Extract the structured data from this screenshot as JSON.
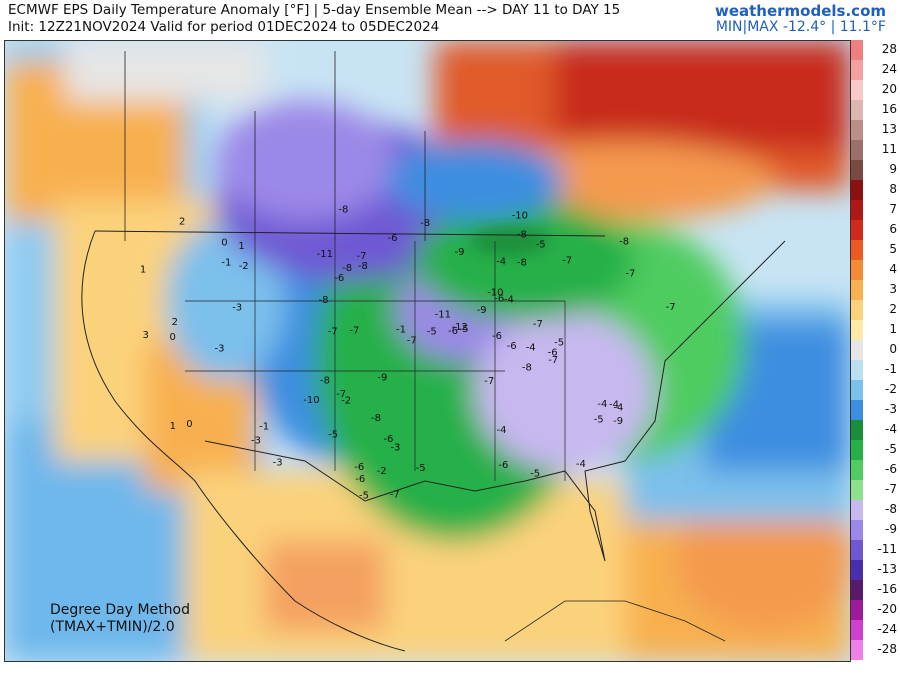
{
  "header": {
    "line1": "ECMWF EPS Daily Temperature Anomaly [°F] | 5-day Ensemble Mean --> DAY 11 to DAY 15",
    "line2": "Init: 12Z21NOV2024 Valid for period 01DEC2024 to 05DEC2024",
    "brand": "weathermodels.com",
    "minmax": "MIN|MAX -12.4° | 11.1°F"
  },
  "footer": {
    "method_line1": "Degree Day Method",
    "method_line2": "(TMAX+TMIN)/2.0"
  },
  "legend": {
    "levels": [
      {
        "label": "28",
        "color": "#f08080"
      },
      {
        "label": "24",
        "color": "#f4a0a0"
      },
      {
        "label": "20",
        "color": "#f8c8c8"
      },
      {
        "label": "16",
        "color": "#dab8b0"
      },
      {
        "label": "13",
        "color": "#b89088"
      },
      {
        "label": "11",
        "color": "#9a7068"
      },
      {
        "label": "9",
        "color": "#7a4a40"
      },
      {
        "label": "8",
        "color": "#8c1010"
      },
      {
        "label": "7",
        "color": "#b01818"
      },
      {
        "label": "6",
        "color": "#d22a1a"
      },
      {
        "label": "5",
        "color": "#ec5a24"
      },
      {
        "label": "4",
        "color": "#f48a34"
      },
      {
        "label": "3",
        "color": "#f8b050"
      },
      {
        "label": "2",
        "color": "#fbd27c"
      },
      {
        "label": "1",
        "color": "#fdeaa8"
      },
      {
        "label": "0",
        "color": "#e6e6e6"
      },
      {
        "label": "-1",
        "color": "#b8e0f0"
      },
      {
        "label": "-2",
        "color": "#7cc0ec"
      },
      {
        "label": "-3",
        "color": "#3c8ee0"
      },
      {
        "label": "-4",
        "color": "#1a8e3a"
      },
      {
        "label": "-5",
        "color": "#28b048"
      },
      {
        "label": "-6",
        "color": "#50cc60"
      },
      {
        "label": "-7",
        "color": "#8ee08c"
      },
      {
        "label": "-8",
        "color": "#c8b8f0"
      },
      {
        "label": "-9",
        "color": "#9c88e8"
      },
      {
        "label": "-11",
        "color": "#7058d4"
      },
      {
        "label": "-13",
        "color": "#4a2eb0"
      },
      {
        "label": "-16",
        "color": "#5a1a6a"
      },
      {
        "label": "-20",
        "color": "#9c1a9c"
      },
      {
        "label": "-24",
        "color": "#d040d0"
      },
      {
        "label": "-28",
        "color": "#f080e8"
      }
    ]
  },
  "station_values": [
    "-12",
    "-11",
    "-11",
    "-10",
    "-10",
    "-9",
    "-10",
    "-9",
    "-8",
    "-9",
    "-8",
    "-9",
    "-8",
    "-8",
    "-7",
    "-8",
    "-7",
    "-6",
    "-7",
    "-6",
    "-5",
    "-6",
    "-5",
    "-4",
    "-5",
    "-4",
    "-3",
    "-4",
    "-3",
    "-2",
    "-1",
    "0",
    "1",
    "2",
    "1",
    "0",
    "-1",
    "-2",
    "-3",
    "-4",
    "-5",
    "-6",
    "-7",
    "-8",
    "-8",
    "-7",
    "-6",
    "-5",
    "-6",
    "-7",
    "-8",
    "-7",
    "-6",
    "-5",
    "-4",
    "-3",
    "-2",
    "-1",
    "0",
    "1",
    "2",
    "3",
    "-7",
    "-8",
    "-7",
    "-6",
    "-7",
    "-8",
    "-6",
    "-5",
    "-4",
    "-3",
    "-4",
    "-5",
    "-6",
    "-7",
    "-8",
    "-7",
    "-6",
    "-5",
    "-4"
  ]
}
